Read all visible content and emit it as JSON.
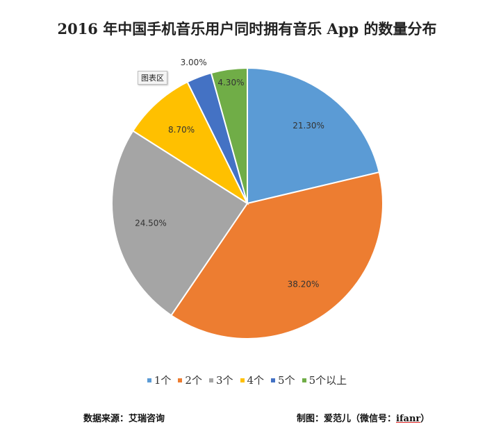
{
  "chart_data": {
    "type": "pie",
    "title": "2016 年中国手机音乐用户同时拥有音乐 App 的数量分布",
    "categories": [
      "1个",
      "2个",
      "3个",
      "4个",
      "5个",
      "5个以上"
    ],
    "values": [
      21.3,
      38.2,
      24.5,
      8.7,
      3.0,
      4.3
    ],
    "data_labels": [
      "21.30%",
      "38.20%",
      "24.50%",
      "8.70%",
      "3.00%",
      "4.30%"
    ],
    "colors": [
      "#5b9bd5",
      "#ed7d31",
      "#a5a5a5",
      "#ffc000",
      "#4472c4",
      "#70ad47"
    ],
    "legend_position": "bottom"
  },
  "tooltip": "图表区",
  "footer": {
    "source": "数据来源：艾瑞咨询",
    "credit_prefix": "制图：爱范儿（微信号：",
    "credit_handle": "ifanr",
    "credit_suffix": "）"
  }
}
